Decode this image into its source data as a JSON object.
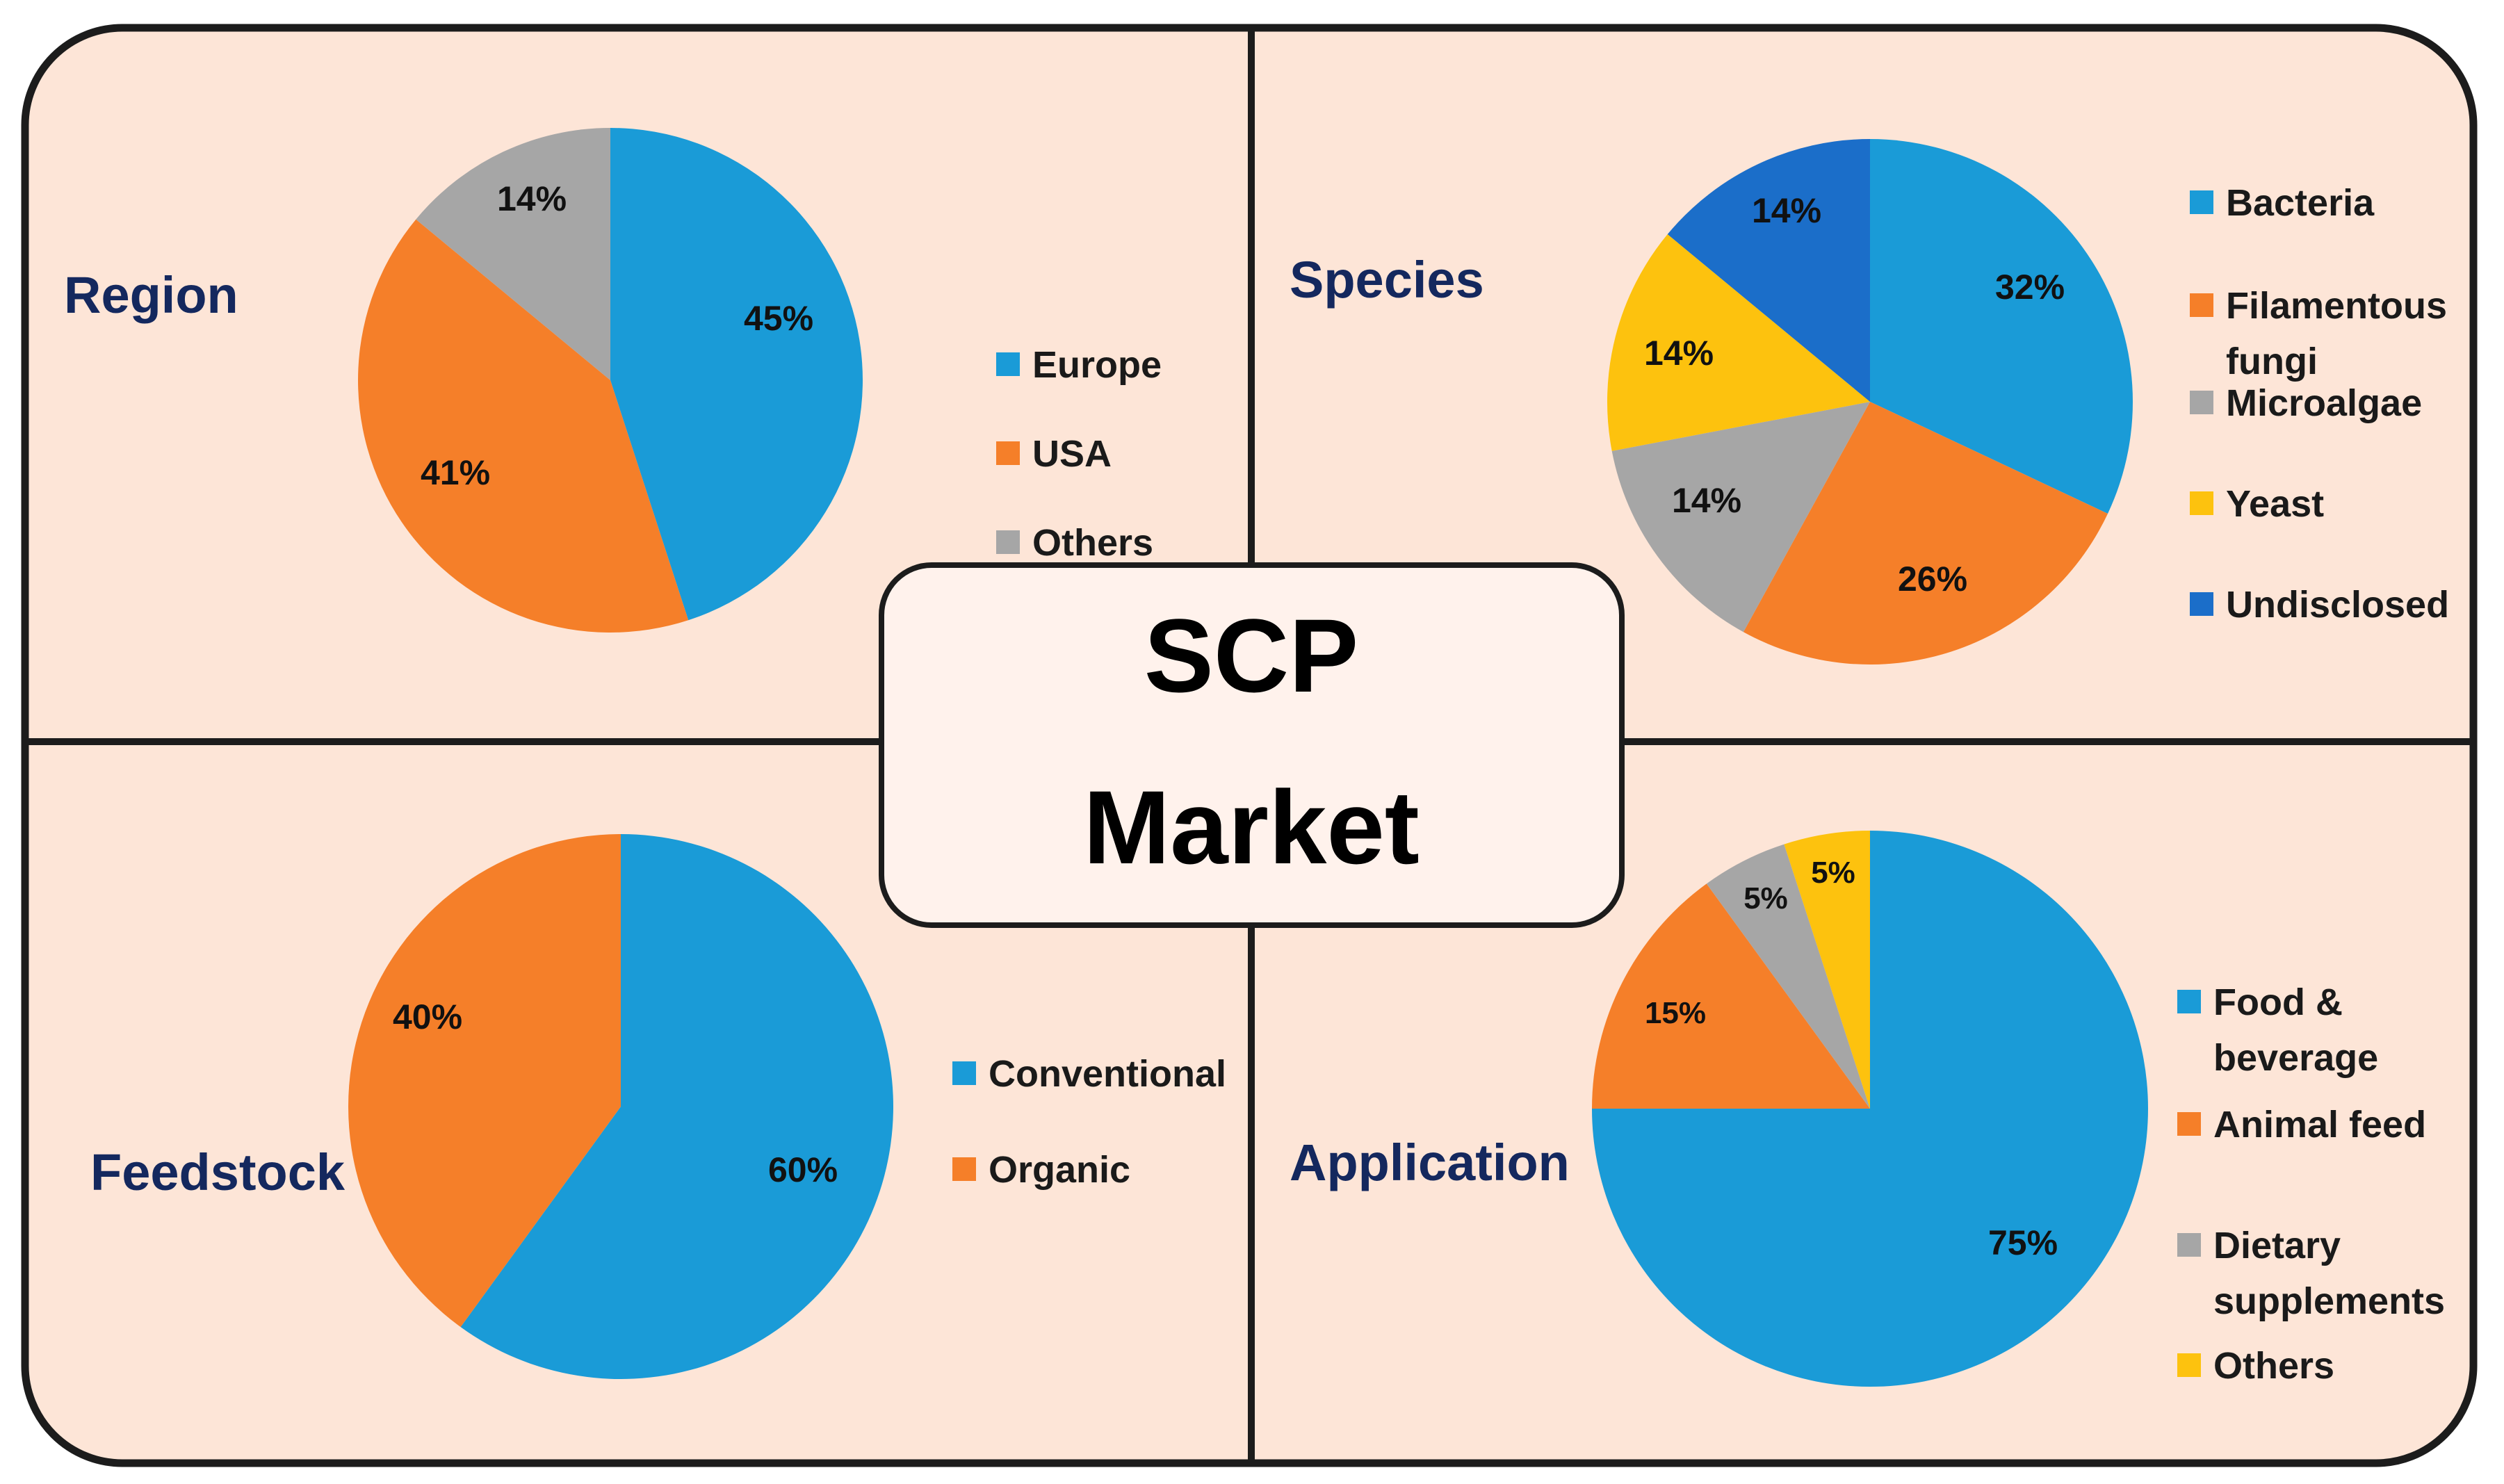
{
  "center": {
    "line1": "SCP",
    "line2": "Market"
  },
  "colors": {
    "background": "#fde5d7",
    "border": "#1c1c1c",
    "blue": "#1a9bd7",
    "orange": "#f57f29",
    "gray": "#a6a6a6",
    "yellow": "#fdc20e",
    "darkblue": "#1b6ec9",
    "title": "#14285e"
  },
  "chart_data": [
    {
      "type": "pie",
      "title": "Region",
      "categories": [
        "Europe",
        "USA",
        "Others"
      ],
      "values": [
        45,
        41,
        14
      ],
      "labels": [
        "45%",
        "41%",
        "14%"
      ],
      "colors": [
        "#1a9bd7",
        "#f57f29",
        "#a6a6a6"
      ],
      "legend_labels": [
        [
          "Europe"
        ],
        [
          "USA"
        ],
        [
          "Others"
        ]
      ]
    },
    {
      "type": "pie",
      "title": "Species",
      "categories": [
        "Bacteria",
        "Filamentous fungi",
        "Microalgae",
        "Yeast",
        "Undisclosed"
      ],
      "values": [
        32,
        26,
        14,
        14,
        14
      ],
      "labels": [
        "32%",
        "26%",
        "14%",
        "14%",
        "14%"
      ],
      "colors": [
        "#1a9bd7",
        "#f57f29",
        "#a6a6a6",
        "#fdc20e",
        "#1b6ec9"
      ],
      "legend_labels": [
        [
          "Bacteria"
        ],
        [
          "Filamentous",
          "fungi"
        ],
        [
          "Microalgae"
        ],
        [
          "Yeast"
        ],
        [
          "Undisclosed"
        ]
      ]
    },
    {
      "type": "pie",
      "title": "Feedstock",
      "categories": [
        "Conventional",
        "Organic"
      ],
      "values": [
        60,
        40
      ],
      "labels": [
        "60%",
        "40%"
      ],
      "colors": [
        "#1a9bd7",
        "#f57f29"
      ],
      "legend_labels": [
        [
          "Conventional"
        ],
        [
          "Organic"
        ]
      ]
    },
    {
      "type": "pie",
      "title": "Application",
      "categories": [
        "Food & beverage",
        "Animal feed",
        "Dietary supplements",
        "Others"
      ],
      "values": [
        75,
        15,
        5,
        5
      ],
      "labels": [
        "75%",
        "15%",
        "5%",
        "5%"
      ],
      "colors": [
        "#1a9bd7",
        "#f57f29",
        "#a6a6a6",
        "#fdc20e"
      ],
      "legend_labels": [
        [
          "Food &",
          "beverage"
        ],
        [
          "Animal feed"
        ],
        [
          "Dietary",
          "supplements"
        ],
        [
          "Others"
        ]
      ]
    }
  ]
}
